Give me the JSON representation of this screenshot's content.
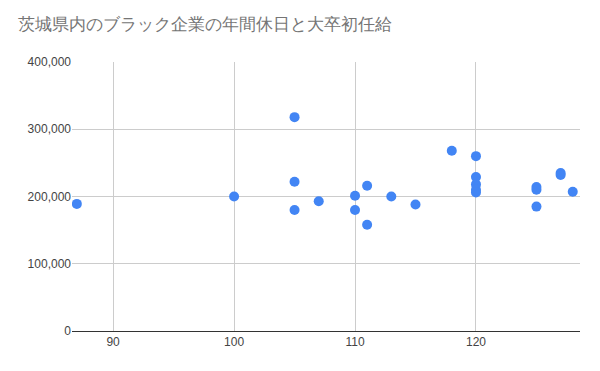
{
  "chart_data": {
    "type": "scatter",
    "title": "茨城県内のブラック企業の年間休日と大卒初任給",
    "x": [
      87,
      100,
      105,
      105,
      105,
      107,
      110,
      110,
      111,
      111,
      113,
      115,
      118,
      120,
      120,
      120,
      120,
      120,
      125,
      125,
      125,
      127,
      127,
      128
    ],
    "values": [
      189000,
      200000,
      318000,
      222000,
      180000,
      193000,
      201000,
      180000,
      216000,
      158000,
      200000,
      188000,
      268000,
      260000,
      229000,
      218000,
      210000,
      206000,
      214000,
      210000,
      185000,
      235000,
      232000,
      207000
    ],
    "color": "#4285f4",
    "marker": "circle",
    "xlim": [
      86.6,
      128.6
    ],
    "xticks": [
      90,
      100,
      110,
      120
    ],
    "ylim": [
      0,
      400000
    ],
    "yticks": [
      0,
      {
        "value": 100000,
        "label": "100,000"
      },
      {
        "value": 200000,
        "label": "200,000"
      },
      {
        "value": 300000,
        "label": "300,000"
      },
      {
        "value": 400000,
        "label": "400,000"
      }
    ],
    "grid": true
  }
}
